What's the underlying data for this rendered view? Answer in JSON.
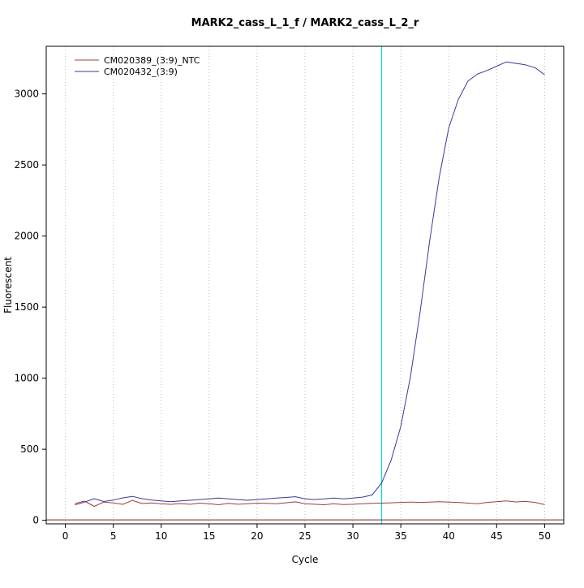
{
  "chart_data": {
    "type": "line",
    "title": "MARK2_cass_L_1_f / MARK2_cass_L_2_r",
    "xlabel": "Cycle",
    "ylabel": "Fluorescent",
    "x_range": [
      -2,
      52
    ],
    "y_range": [
      -25,
      3335
    ],
    "xticks": [
      0,
      5,
      10,
      15,
      20,
      25,
      30,
      35,
      40,
      45,
      50
    ],
    "yticks": [
      0,
      500,
      1000,
      1500,
      2000,
      2500,
      3000
    ],
    "grid": {
      "vertical": true,
      "style": "dotted",
      "color": "#b8b8b8"
    },
    "ct_marker": {
      "x": 33,
      "color": "#00e0e0"
    },
    "baseline": {
      "y": 3,
      "color": "#7a1f1f"
    },
    "legend_position": "top-left",
    "x": [
      1,
      2,
      3,
      4,
      5,
      6,
      7,
      8,
      9,
      10,
      11,
      12,
      13,
      14,
      15,
      16,
      17,
      18,
      19,
      20,
      21,
      22,
      23,
      24,
      25,
      26,
      27,
      28,
      29,
      30,
      31,
      32,
      33,
      34,
      35,
      36,
      37,
      38,
      39,
      40,
      41,
      42,
      43,
      44,
      45,
      46,
      47,
      48,
      49,
      50
    ],
    "series": [
      {
        "name": "CM020389_(3:9)_NTC",
        "color": "#9c3f3f",
        "values": [
          118,
          135,
          98,
          128,
          122,
          112,
          140,
          118,
          122,
          116,
          112,
          118,
          113,
          121,
          116,
          109,
          119,
          113,
          116,
          121,
          119,
          116,
          123,
          130,
          116,
          113,
          109,
          116,
          111,
          113,
          116,
          119,
          121,
          123,
          126,
          128,
          126,
          128,
          131,
          128,
          126,
          121,
          116,
          126,
          131,
          136,
          129,
          133,
          126,
          111
        ]
      },
      {
        "name": "CM020432_(3:9)",
        "color": "#39399b",
        "values": [
          108,
          128,
          152,
          132,
          142,
          158,
          168,
          152,
          142,
          136,
          131,
          136,
          141,
          146,
          151,
          156,
          151,
          146,
          141,
          146,
          151,
          156,
          161,
          166,
          151,
          146,
          151,
          156,
          151,
          156,
          163,
          178,
          262,
          425,
          660,
          1010,
          1460,
          1960,
          2410,
          2760,
          2960,
          3090,
          3140,
          3165,
          3195,
          3225,
          3215,
          3205,
          3185,
          3135
        ]
      }
    ]
  }
}
